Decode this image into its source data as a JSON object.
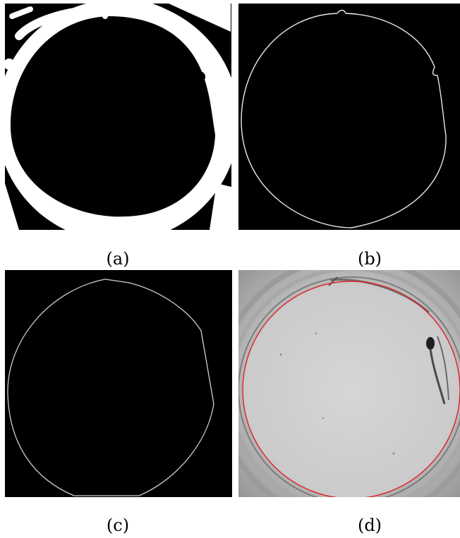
{
  "figure": {
    "panels": [
      {
        "caption": "(a)",
        "content": "binary-mask"
      },
      {
        "caption": "(b)",
        "content": "edge-contour"
      },
      {
        "caption": "(c)",
        "content": "fitted-boundary"
      },
      {
        "caption": "(d)",
        "content": "petri-dish-photo-with-overlay"
      }
    ],
    "colors": {
      "background": "#000000",
      "foreground": "#ffffff",
      "overlay": "#e0202a"
    }
  }
}
